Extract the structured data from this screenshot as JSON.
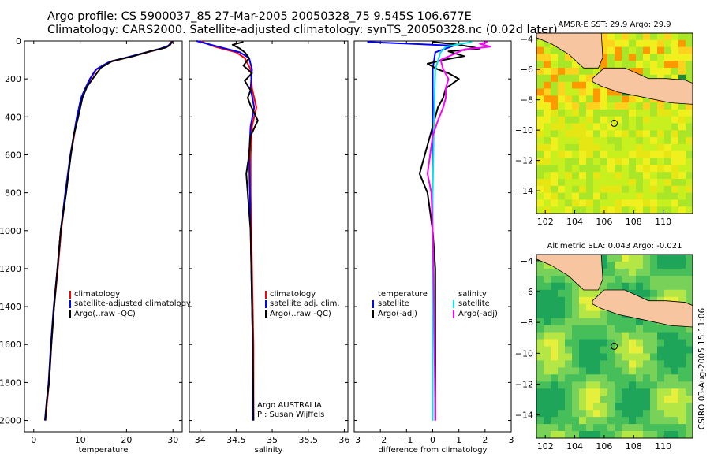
{
  "header": {
    "title_line1": "Argo profile: CS 5900037_85 27-Mar-2005 20050328_75 9.545S 106.677E",
    "title_line2": "Climatology: CARS2000. Satellite-adjusted climatology: synTS_20050328.nc (0.02d later)"
  },
  "side_label": "CSIRO 03-Aug-2005 15:11:06",
  "colors": {
    "climatology": "#ff0000",
    "satellite": "#0000ff",
    "argo": "#000000",
    "sal_satellite": "#00e5e5",
    "sal_argo": "#ff00ff",
    "land": "#f7c59f"
  },
  "chart_data": [
    {
      "id": "temperature",
      "type": "line",
      "xlabel": "temperature",
      "ylabel": "",
      "xlim": [
        -2,
        32
      ],
      "ylim": [
        0,
        2060
      ],
      "xticks": [
        0,
        10,
        20,
        30
      ],
      "yticks": [
        0,
        200,
        400,
        600,
        800,
        1000,
        1200,
        1400,
        1600,
        1800,
        2000
      ],
      "y_inverted": true,
      "legend": [
        "climatology",
        "satellite-adjusted climatology",
        "Argo(..raw -QC)"
      ],
      "series": [
        {
          "name": "climatology",
          "color": "#ff0000",
          "x": [
            29.6,
            29.2,
            27.5,
            24.5,
            20.5,
            16.5,
            13.5,
            12.2,
            11.2,
            10.3,
            9.4,
            8.7,
            8.0,
            6.9,
            5.9,
            5.2,
            4.4,
            3.8,
            3.3,
            2.9,
            2.5
          ],
          "y": [
            0,
            25,
            40,
            60,
            85,
            110,
            150,
            200,
            250,
            300,
            400,
            500,
            600,
            800,
            1000,
            1200,
            1400,
            1600,
            1800,
            1900,
            2000
          ]
        },
        {
          "name": "satellite-adjusted climatology",
          "color": "#0000ff",
          "x": [
            29.9,
            29.0,
            27.4,
            24.3,
            20.3,
            16.3,
            13.4,
            12.1,
            11.1,
            10.2,
            9.3,
            8.6,
            7.9,
            6.8,
            5.8,
            5.1,
            4.3,
            3.7,
            3.2,
            2.8,
            2.4
          ],
          "y": [
            0,
            25,
            40,
            60,
            85,
            110,
            150,
            200,
            250,
            300,
            400,
            500,
            600,
            800,
            1000,
            1200,
            1400,
            1600,
            1800,
            1900,
            2000
          ]
        },
        {
          "name": "Argo(..raw -QC)",
          "color": "#000000",
          "x": [
            29.9,
            29.4,
            28.5,
            25.0,
            21.5,
            17.0,
            14.5,
            13.0,
            11.5,
            10.5,
            9.6,
            8.6,
            8.0,
            7.0,
            5.8,
            5.1,
            4.4,
            3.8,
            3.3,
            2.8,
            2.5
          ],
          "y": [
            0,
            20,
            35,
            55,
            80,
            105,
            140,
            190,
            240,
            300,
            400,
            500,
            600,
            800,
            1000,
            1200,
            1400,
            1600,
            1800,
            1900,
            2000
          ]
        }
      ]
    },
    {
      "id": "salinity",
      "type": "line",
      "xlabel": "salinity",
      "xlim": [
        33.85,
        36.05
      ],
      "ylim": [
        0,
        2060
      ],
      "xticks": [
        34,
        34.5,
        35,
        35.5,
        36
      ],
      "y_inverted": true,
      "legend": [
        "climatology",
        "satellite adj. clim.",
        "Argo(..raw -QC)"
      ],
      "annotation": [
        "Argo AUSTRALIA",
        "PI: Susan Wijffels"
      ],
      "series": [
        {
          "name": "climatology",
          "color": "#ff0000",
          "x": [
            34.0,
            34.2,
            34.5,
            34.62,
            34.7,
            34.72,
            34.78,
            34.72,
            34.7,
            34.7,
            34.72,
            34.74,
            34.74
          ],
          "y": [
            0,
            30,
            60,
            90,
            150,
            250,
            350,
            450,
            600,
            800,
            1200,
            1600,
            2000
          ]
        },
        {
          "name": "satellite adj. clim.",
          "color": "#0000ff",
          "x": [
            33.95,
            34.25,
            34.55,
            34.68,
            34.72,
            34.7,
            34.75,
            34.7,
            34.68,
            34.69,
            34.71,
            34.73,
            34.73
          ],
          "y": [
            0,
            30,
            60,
            90,
            150,
            250,
            350,
            450,
            600,
            800,
            1200,
            1600,
            2000
          ]
        },
        {
          "name": "Argo(..raw -QC)",
          "color": "#000000",
          "x": [
            34.6,
            34.45,
            34.55,
            34.62,
            34.68,
            34.6,
            34.72,
            34.62,
            34.7,
            34.66,
            34.7,
            34.74,
            34.8,
            34.7,
            34.68,
            34.64,
            34.66,
            34.7,
            34.71,
            34.73,
            34.74
          ],
          "y": [
            5,
            20,
            40,
            60,
            90,
            130,
            170,
            210,
            260,
            300,
            340,
            370,
            420,
            500,
            600,
            700,
            800,
            1000,
            1200,
            1600,
            2000
          ]
        }
      ]
    },
    {
      "id": "difference",
      "type": "line",
      "xlabel": "difference from climatology",
      "xlim": [
        -3,
        3
      ],
      "ylim": [
        0,
        2060
      ],
      "xticks": [
        -3,
        -2,
        -1,
        0,
        1,
        2,
        3
      ],
      "y_inverted": true,
      "legend_left": [
        "temperature",
        "satellite",
        "Argo(-adj)"
      ],
      "legend_right": [
        "salinity",
        "satellite",
        "Argo(-adj)"
      ],
      "series": [
        {
          "name": "temperature satellite",
          "color": "#0000ff",
          "x": [
            -2.5,
            0.8,
            0.1,
            0.0,
            0.0,
            0.0,
            0.0,
            0.0,
            0.0
          ],
          "y": [
            5,
            25,
            60,
            150,
            400,
            800,
            1200,
            1600,
            2000
          ]
        },
        {
          "name": "temperature Argo(-adj)",
          "color": "#000000",
          "x": [
            0.0,
            1.0,
            1.8,
            0.6,
            1.2,
            0.4,
            -0.2,
            0.2,
            0.6,
            1.0,
            0.5,
            0.4,
            0.2,
            0.1,
            -0.1,
            -0.3,
            -0.5,
            -0.2,
            0.0,
            0.1,
            0.1,
            0.1
          ],
          "y": [
            5,
            20,
            40,
            55,
            80,
            100,
            120,
            150,
            170,
            200,
            250,
            300,
            350,
            400,
            500,
            600,
            700,
            800,
            1000,
            1200,
            1600,
            2000
          ]
        },
        {
          "name": "salinity satellite",
          "color": "#00e5e5",
          "x": [
            1.5,
            0.5,
            0.3,
            0.1,
            0.05,
            0.0,
            0.0,
            0.0,
            0.0
          ],
          "y": [
            5,
            30,
            60,
            150,
            400,
            800,
            1200,
            1600,
            2000
          ]
        },
        {
          "name": "salinity Argo(-adj)",
          "color": "#ff00ff",
          "x": [
            2.1,
            1.8,
            2.2,
            1.2,
            0.8,
            0.3,
            0.4,
            0.6,
            0.5,
            0.5,
            0.4,
            0.2,
            0.0,
            -0.1,
            -0.2,
            -0.05,
            0.0,
            0.05,
            0.1
          ],
          "y": [
            5,
            15,
            30,
            45,
            70,
            100,
            150,
            200,
            250,
            300,
            350,
            420,
            500,
            600,
            700,
            800,
            1000,
            1400,
            2000
          ]
        }
      ]
    },
    {
      "id": "sst_map",
      "type": "heatmap",
      "title": "AMSR-E SST: 29.9 Argo: 29.9",
      "xlim": [
        101.4,
        112
      ],
      "ylim": [
        -15.5,
        -3.6
      ],
      "xticks": [
        102,
        104,
        106,
        108,
        110
      ],
      "yticks": [
        -4,
        -6,
        -8,
        -10,
        -12,
        -14
      ],
      "marker": {
        "lon": 106.677,
        "lat": -9.545
      }
    },
    {
      "id": "sla_map",
      "type": "heatmap",
      "title": "Altimetric SLA: 0.043 Argo: -0.021",
      "xlim": [
        101.4,
        112
      ],
      "ylim": [
        -15.5,
        -3.6
      ],
      "xticks": [
        102,
        104,
        106,
        108,
        110
      ],
      "yticks": [
        -4,
        -6,
        -8,
        -10,
        -12,
        -14
      ],
      "marker": {
        "lon": 106.677,
        "lat": -9.545
      }
    }
  ]
}
